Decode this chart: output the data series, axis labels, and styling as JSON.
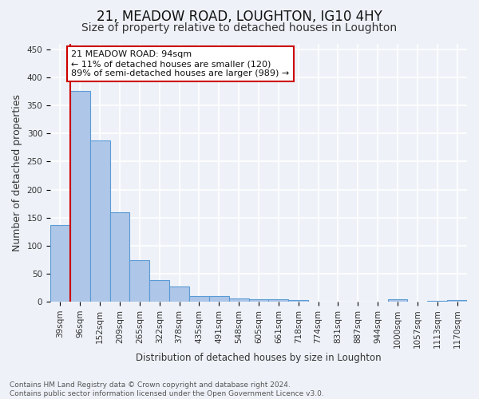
{
  "title": "21, MEADOW ROAD, LOUGHTON, IG10 4HY",
  "subtitle": "Size of property relative to detached houses in Loughton",
  "xlabel": "Distribution of detached houses by size in Loughton",
  "ylabel": "Number of detached properties",
  "categories": [
    "39sqm",
    "96sqm",
    "152sqm",
    "209sqm",
    "265sqm",
    "322sqm",
    "378sqm",
    "435sqm",
    "491sqm",
    "548sqm",
    "605sqm",
    "661sqm",
    "718sqm",
    "774sqm",
    "831sqm",
    "887sqm",
    "944sqm",
    "1000sqm",
    "1057sqm",
    "1113sqm",
    "1170sqm"
  ],
  "values": [
    137,
    376,
    287,
    159,
    74,
    38,
    27,
    10,
    10,
    6,
    4,
    4,
    3,
    0,
    0,
    0,
    0,
    4,
    0,
    2,
    3
  ],
  "bar_color": "#aec6e8",
  "bar_edge_color": "#5b9bd5",
  "annotation_text": "21 MEADOW ROAD: 94sqm\n← 11% of detached houses are smaller (120)\n89% of semi-detached houses are larger (989) →",
  "annotation_box_color": "#ffffff",
  "annotation_box_edge": "#cc0000",
  "ylim": [
    0,
    460
  ],
  "yticks": [
    0,
    50,
    100,
    150,
    200,
    250,
    300,
    350,
    400,
    450
  ],
  "footnote": "Contains HM Land Registry data © Crown copyright and database right 2024.\nContains public sector information licensed under the Open Government Licence v3.0.",
  "bg_color": "#eef2f8",
  "plot_bg_color": "#eef2f8",
  "grid_color": "#ffffff",
  "title_fontsize": 12,
  "subtitle_fontsize": 10,
  "tick_fontsize": 7.5,
  "ylabel_fontsize": 9
}
